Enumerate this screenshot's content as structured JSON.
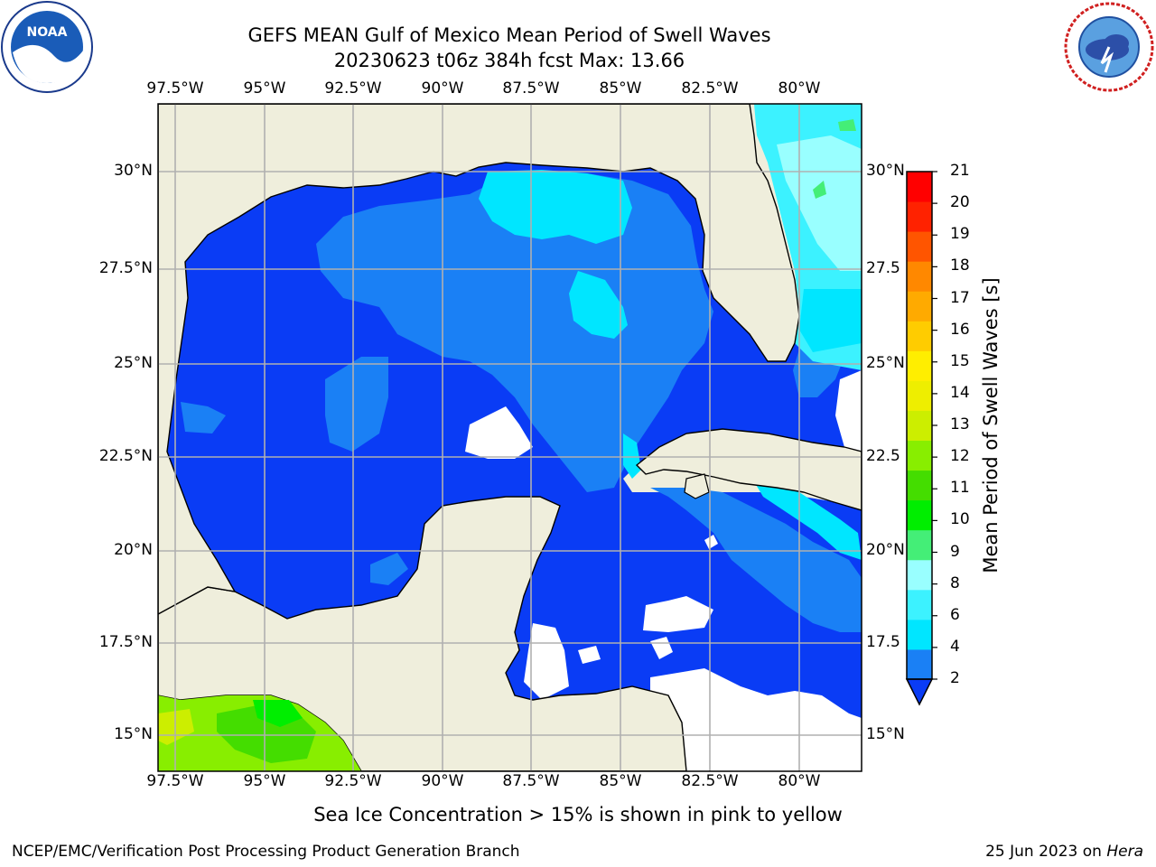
{
  "header": {
    "title_line1": "GEFS MEAN Gulf of Mexico Mean Period of Swell Waves",
    "title_line2": "20230623 t06z 384h fcst   Max: 13.66"
  },
  "logos": {
    "left": "NOAA",
    "right": "NATIONAL WEATHER SERVICE"
  },
  "map": {
    "lon_labels": [
      "97.5°W",
      "95°W",
      "92.5°W",
      "90°W",
      "87.5°W",
      "85°W",
      "82.5°W",
      "80°W"
    ],
    "lat_labels_left": [
      "30°N",
      "27.5°N",
      "25°N",
      "22.5°N",
      "20°N",
      "17.5°N",
      "15°N"
    ],
    "lat_labels_right": [
      "30°N",
      "27.5",
      "25°N",
      "22.5",
      "20°N",
      "17.5",
      "15°N"
    ],
    "extent": {
      "lon": [
        -98,
        -78.3
      ],
      "lat": [
        14,
        31.8
      ]
    },
    "colors": {
      "land": "#efeedc",
      "grid": "#b0b0b0",
      "nodata": "#ffffff"
    }
  },
  "colorbar": {
    "label": "Mean Period of Swell Waves [s]",
    "ticks": [
      "2",
      "4",
      "6",
      "8",
      "9",
      "10",
      "11",
      "12",
      "13",
      "14",
      "15",
      "16",
      "17",
      "18",
      "19",
      "20",
      "21"
    ],
    "colors": [
      "#0a3cf5",
      "#1a80f5",
      "#00e6ff",
      "#3cf2ff",
      "#99ffff",
      "#44ee77",
      "#00ee00",
      "#44dd00",
      "#88ee00",
      "#ccee00",
      "#eeee00",
      "#ffee00",
      "#ffcc00",
      "#ffaa00",
      "#ff8800",
      "#ff5500",
      "#ff2200",
      "#ff0000"
    ],
    "extend": "min"
  },
  "notes": {
    "ice": "Sea Ice Concentration > 15% is shown in pink to yellow",
    "footer_left": "NCEP/EMC/Verification Post Processing Product Generation Branch",
    "footer_date": "25 Jun 2023 on ",
    "footer_machine": "Hera"
  }
}
